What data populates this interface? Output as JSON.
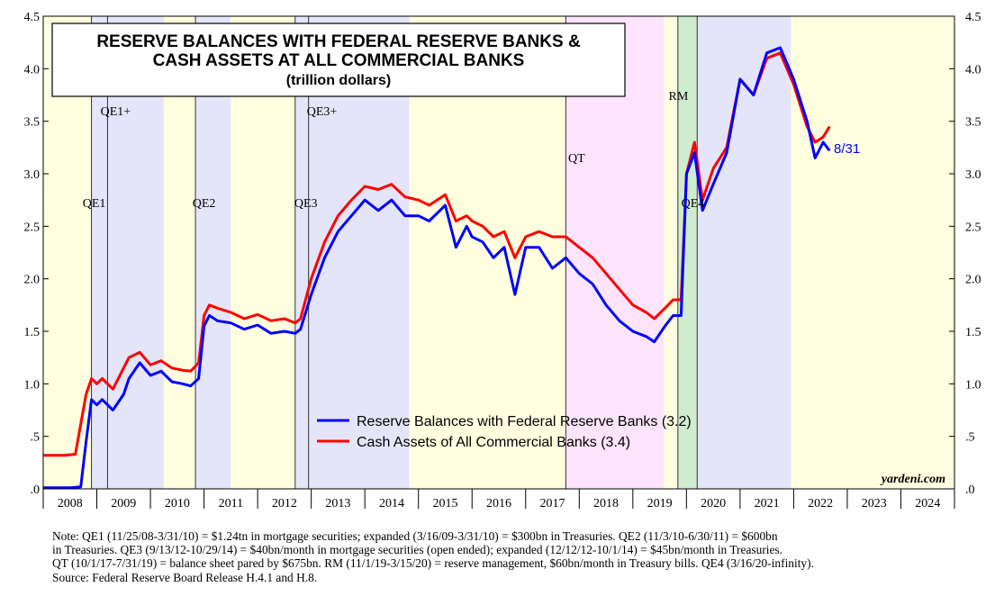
{
  "chart_data": {
    "type": "line",
    "title": [
      "RESERVE BALANCES WITH FEDERAL RESERVE BANKS &",
      "CASH ASSETS AT ALL COMMERCIAL BANKS"
    ],
    "subtitle": "(trillion dollars)",
    "ylim": [
      0,
      4.5
    ],
    "y_ticks": [
      ".0",
      ".5",
      "1.0",
      "1.5",
      "2.0",
      "2.5",
      "3.0",
      "3.5",
      "4.0",
      "4.5"
    ],
    "x_tick_labels": [
      "2008",
      "2009",
      "2010",
      "2011",
      "2012",
      "2013",
      "2014",
      "2015",
      "2016",
      "2017",
      "2018",
      "2019",
      "2020",
      "2021",
      "2022",
      "2023",
      "2024"
    ],
    "xlim": [
      2008.0,
      2025.0
    ],
    "grid": false,
    "legend_position": "bottom-center",
    "series": [
      {
        "name": "Reserve Balances with Federal Reserve Banks (3.2)",
        "color": "#0000ff",
        "x": [
          2008.0,
          2008.5,
          2008.7,
          2008.8,
          2008.9,
          2009.0,
          2009.1,
          2009.3,
          2009.5,
          2009.6,
          2009.8,
          2010.0,
          2010.2,
          2010.4,
          2010.6,
          2010.75,
          2010.9,
          2011.0,
          2011.1,
          2011.25,
          2011.5,
          2011.75,
          2012.0,
          2012.25,
          2012.5,
          2012.7,
          2012.8,
          2013.0,
          2013.25,
          2013.5,
          2013.75,
          2014.0,
          2014.25,
          2014.5,
          2014.75,
          2015.0,
          2015.2,
          2015.5,
          2015.7,
          2015.9,
          2016.0,
          2016.2,
          2016.4,
          2016.6,
          2016.8,
          2017.0,
          2017.25,
          2017.5,
          2017.75,
          2018.0,
          2018.25,
          2018.5,
          2018.75,
          2019.0,
          2019.25,
          2019.4,
          2019.6,
          2019.75,
          2019.9,
          2020.0,
          2020.15,
          2020.3,
          2020.5,
          2020.75,
          2021.0,
          2021.25,
          2021.5,
          2021.75,
          2022.0,
          2022.25,
          2022.4,
          2022.55,
          2022.67
        ],
        "values": [
          0.01,
          0.01,
          0.02,
          0.45,
          0.85,
          0.8,
          0.85,
          0.75,
          0.9,
          1.05,
          1.2,
          1.08,
          1.12,
          1.02,
          1.0,
          0.98,
          1.05,
          1.55,
          1.65,
          1.6,
          1.58,
          1.52,
          1.56,
          1.48,
          1.5,
          1.48,
          1.52,
          1.85,
          2.2,
          2.45,
          2.6,
          2.75,
          2.65,
          2.75,
          2.6,
          2.6,
          2.55,
          2.7,
          2.3,
          2.5,
          2.4,
          2.35,
          2.2,
          2.3,
          1.85,
          2.3,
          2.3,
          2.1,
          2.2,
          2.05,
          1.95,
          1.75,
          1.6,
          1.5,
          1.45,
          1.4,
          1.55,
          1.65,
          1.65,
          3.0,
          3.2,
          2.65,
          2.9,
          3.2,
          3.9,
          3.75,
          4.15,
          4.2,
          3.9,
          3.5,
          3.15,
          3.3,
          3.22
        ]
      },
      {
        "name": "Cash Assets of All Commercial Banks (3.4)",
        "color": "#ff0000",
        "x": [
          2008.0,
          2008.4,
          2008.6,
          2008.8,
          2008.9,
          2009.0,
          2009.1,
          2009.3,
          2009.5,
          2009.6,
          2009.8,
          2010.0,
          2010.2,
          2010.4,
          2010.6,
          2010.75,
          2010.9,
          2011.0,
          2011.1,
          2011.25,
          2011.5,
          2011.75,
          2012.0,
          2012.25,
          2012.5,
          2012.7,
          2012.8,
          2013.0,
          2013.25,
          2013.5,
          2013.75,
          2014.0,
          2014.25,
          2014.5,
          2014.75,
          2015.0,
          2015.2,
          2015.5,
          2015.7,
          2015.9,
          2016.0,
          2016.2,
          2016.4,
          2016.6,
          2016.8,
          2017.0,
          2017.25,
          2017.5,
          2017.75,
          2018.0,
          2018.25,
          2018.5,
          2018.75,
          2019.0,
          2019.25,
          2019.4,
          2019.6,
          2019.75,
          2019.9,
          2020.0,
          2020.15,
          2020.3,
          2020.5,
          2020.75,
          2021.0,
          2021.25,
          2021.5,
          2021.75,
          2022.0,
          2022.25,
          2022.4,
          2022.55,
          2022.67
        ],
        "values": [
          0.32,
          0.32,
          0.33,
          0.9,
          1.05,
          1.0,
          1.05,
          0.95,
          1.15,
          1.25,
          1.3,
          1.18,
          1.22,
          1.15,
          1.13,
          1.12,
          1.2,
          1.65,
          1.75,
          1.72,
          1.68,
          1.62,
          1.66,
          1.6,
          1.62,
          1.58,
          1.62,
          2.0,
          2.35,
          2.6,
          2.75,
          2.88,
          2.85,
          2.9,
          2.78,
          2.75,
          2.7,
          2.8,
          2.55,
          2.6,
          2.55,
          2.5,
          2.4,
          2.45,
          2.2,
          2.4,
          2.45,
          2.4,
          2.4,
          2.3,
          2.2,
          2.05,
          1.9,
          1.75,
          1.68,
          1.62,
          1.72,
          1.8,
          1.8,
          3.0,
          3.3,
          2.75,
          3.05,
          3.25,
          3.9,
          3.75,
          4.1,
          4.15,
          3.85,
          3.45,
          3.3,
          3.35,
          3.45
        ]
      }
    ],
    "period_labels": [
      "QE1",
      "QE1+",
      "QE2",
      "QE3",
      "QE3+",
      "QT",
      "RM",
      "QE4"
    ],
    "end_label": "8/31",
    "watermark": "yardeni.com",
    "colors": {
      "yellow": "#ffffe0",
      "lavender": "#e5e5fa",
      "pink": "#fce4fc",
      "green": "#cfeccf",
      "reserve_line": "#0000ff",
      "cash_line": "#ff0000"
    }
  },
  "note": [
    "Note: QE1 (11/25/08-3/31/10) = $1.24tn in mortgage securities; expanded (3/16/09-3/31/10) = $300bn in Treasuries. QE2 (11/3/10-6/30/11) = $600bn",
    "in Treasuries. QE3 (9/13/12-10/29/14) = $40bn/month in mortgage securities (open ended); expanded (12/12/12-10/1/14) = $45bn/month in Treasuries.",
    "QT (10/1/17-7/31/19) = balance sheet pared by $675bn. RM (11/1/19-3/15/20) = reserve management, $60bn/month in Treasury bills. QE4 (3/16/20-infinity).",
    "Source: Federal Reserve Board Release H.4.1 and H.8."
  ]
}
